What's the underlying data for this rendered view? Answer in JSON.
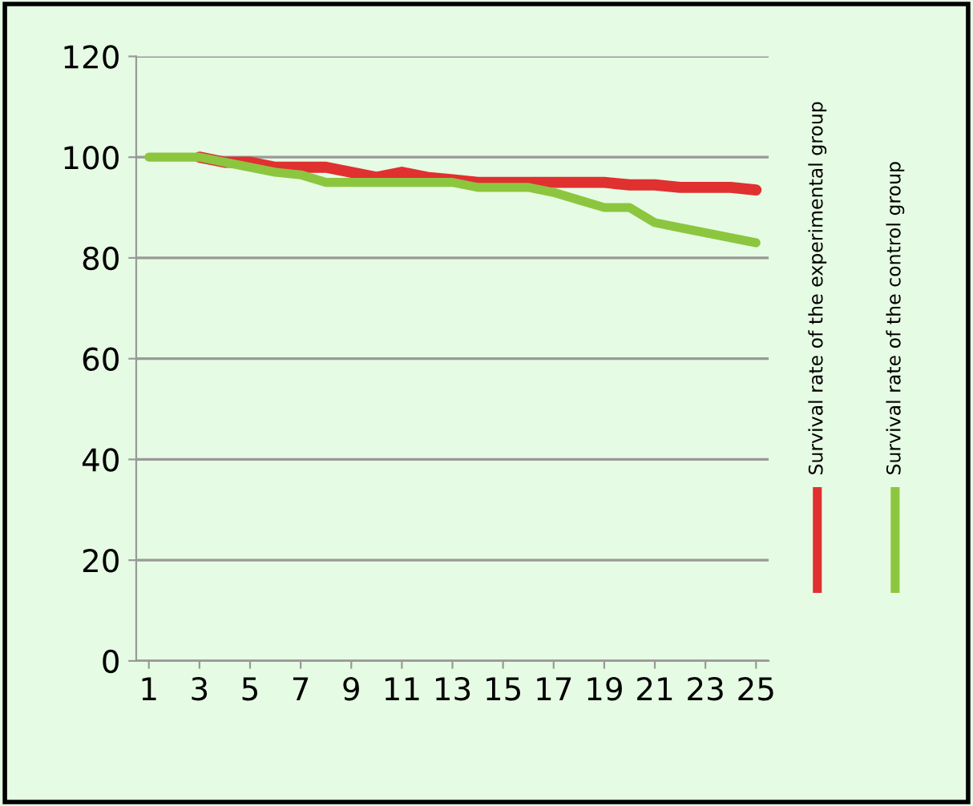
{
  "chart_data": {
    "type": "line",
    "x": [
      1,
      2,
      3,
      4,
      5,
      6,
      7,
      8,
      9,
      10,
      11,
      12,
      13,
      14,
      15,
      16,
      17,
      18,
      19,
      20,
      21,
      22,
      23,
      24,
      25
    ],
    "series": [
      {
        "name": "Survival rate of the experimental group",
        "color": "#e03030",
        "values": [
          null,
          null,
          100,
          99,
          99,
          98,
          98,
          98,
          97,
          96,
          97,
          96,
          95.5,
          95,
          95,
          95,
          95,
          95,
          95,
          94.5,
          94.5,
          94,
          94,
          94,
          93.5
        ]
      },
      {
        "name": "Survival rate of the control group",
        "color": "#8cc63f",
        "values": [
          100,
          100,
          100,
          99,
          98,
          97,
          96.5,
          95,
          95,
          95,
          95,
          95,
          95,
          94,
          94,
          94,
          93,
          91.5,
          90,
          90,
          87,
          86,
          85,
          84,
          83
        ]
      }
    ],
    "xlim": [
      0.5,
      25.5
    ],
    "xticks": [
      1,
      3,
      5,
      7,
      9,
      11,
      13,
      15,
      17,
      19,
      21,
      23,
      25
    ],
    "ylim": [
      0,
      120
    ],
    "yticks": [
      0,
      20,
      40,
      60,
      80,
      100,
      120
    ],
    "grid": "y",
    "legend": "right",
    "marker": "none",
    "line_style": "solid"
  }
}
